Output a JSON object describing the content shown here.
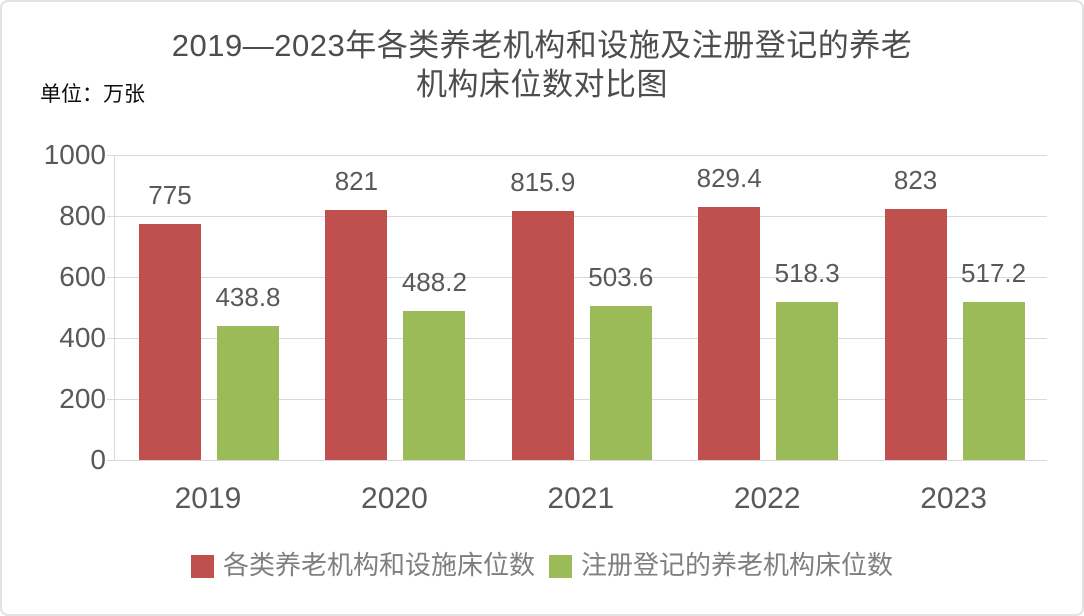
{
  "title": {
    "line1": "2019—2023年各类养老机构和设施及注册登记的养老",
    "line2": "机构床位数对比图"
  },
  "unit_label": "单位：万张",
  "chart_data": {
    "type": "bar",
    "title": "2019—2023年各类养老机构和设施及注册登记的养老机构床位数对比图",
    "unit": "万张",
    "categories": [
      "2019",
      "2020",
      "2021",
      "2022",
      "2023"
    ],
    "series": [
      {
        "name": "各类养老机构和设施床位数",
        "color": "#C0504D",
        "values": [
          775,
          821,
          815.9,
          829.4,
          823
        ],
        "labels": [
          "775",
          "821",
          "815.9",
          "829.4",
          "823"
        ]
      },
      {
        "name": "注册登记的养老机构床位数",
        "color": "#9BBB59",
        "values": [
          438.8,
          488.2,
          503.6,
          518.3,
          517.2
        ],
        "labels": [
          "438.8",
          "488.2",
          "503.6",
          "518.3",
          "517.2"
        ]
      }
    ],
    "xlabel": "",
    "ylabel": "",
    "ylim": [
      0,
      1000
    ],
    "yticks": [
      0,
      200,
      400,
      600,
      800,
      1000
    ],
    "grid": true,
    "legend_position": "bottom"
  },
  "style_colors": {
    "grid": "#d9d9d9",
    "axis_text": "#595959",
    "title_text": "#4d4d4d",
    "legend_text": "#7f7f7f"
  }
}
